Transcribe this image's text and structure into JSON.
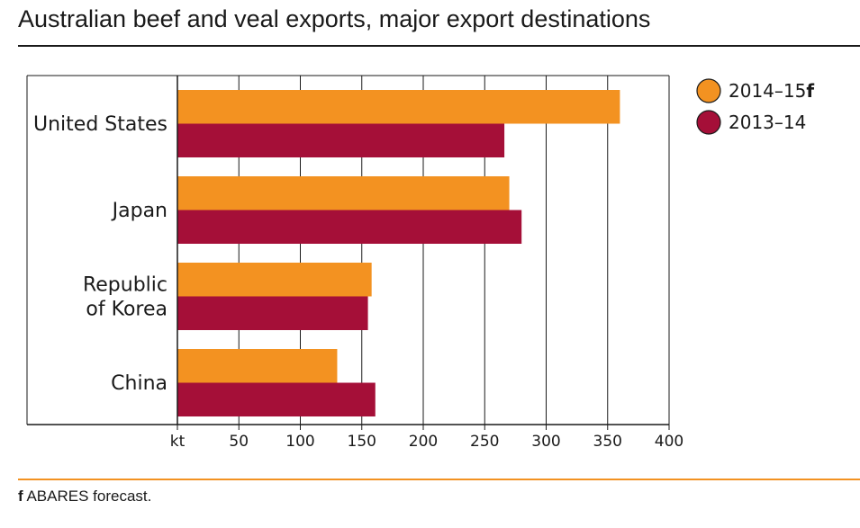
{
  "title": "Australian beef and veal exports, major export destinations",
  "footnote": {
    "marker": "f",
    "text": "ABARES forecast."
  },
  "colors": {
    "orange": "#F39221",
    "crimson": "#A50F38",
    "grid": "#1a1a1a"
  },
  "chart_data": {
    "type": "bar",
    "orientation": "horizontal",
    "categories": [
      [
        "United States"
      ],
      [
        "Japan"
      ],
      [
        "Republic",
        "of Korea"
      ],
      [
        "China"
      ]
    ],
    "series": [
      {
        "label": "2014–15",
        "label_suffix": "f",
        "color": "#F39221",
        "values": [
          360,
          270,
          158,
          130
        ]
      },
      {
        "label": "2013–14",
        "label_suffix": "",
        "color": "#A50F38",
        "values": [
          266,
          280,
          155,
          161
        ]
      }
    ],
    "x_unit": "kt",
    "xlim": [
      0,
      400
    ],
    "x_ticks": [
      50,
      100,
      150,
      200,
      250,
      300,
      350,
      400
    ],
    "grid": true,
    "legend_position": "top-right"
  }
}
